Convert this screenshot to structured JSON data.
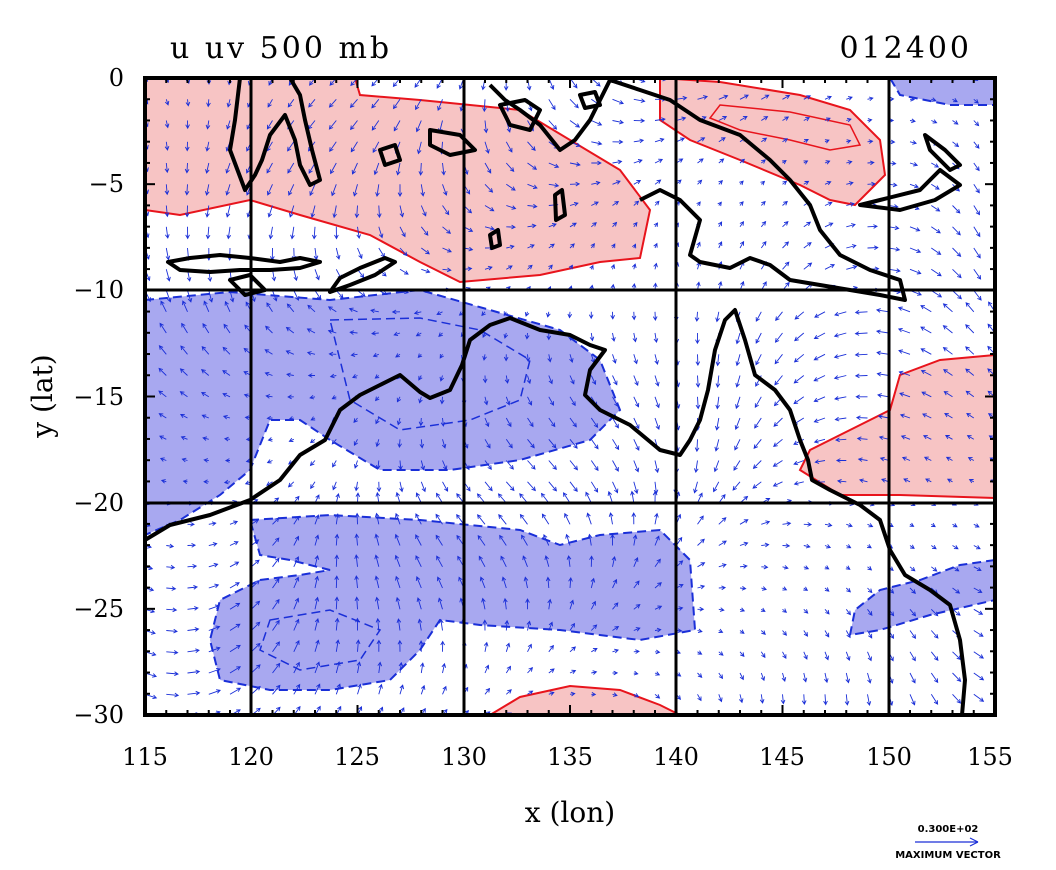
{
  "title": "u uv 500 mb",
  "timestamp": "012400",
  "x_axis": {
    "label": "x (lon)",
    "range": [
      115,
      155
    ],
    "ticks": [
      "115",
      "120",
      "125",
      "130",
      "135",
      "140",
      "145",
      "150",
      "155"
    ]
  },
  "y_axis": {
    "label": "y (lat)",
    "range": [
      -30,
      0
    ],
    "ticks": [
      "0",
      "−5",
      "−10",
      "−15",
      "−20",
      "−25",
      "−30"
    ]
  },
  "vector_legend": {
    "value": "0.300E+02",
    "caption": "MAXIMUM VECTOR"
  },
  "colors": {
    "positive_fill": "#f7c4c4",
    "positive_contour": "#e8141c",
    "negative_fill": "#a8a8f0",
    "negative_contour": "#1a2fd8",
    "vectors": "#1a2fd8",
    "coastline": "#000000"
  },
  "map_layers": [
    "coastline",
    "wind-vectors",
    "positive-u-shading",
    "negative-u-shading",
    "grid-lines"
  ]
}
